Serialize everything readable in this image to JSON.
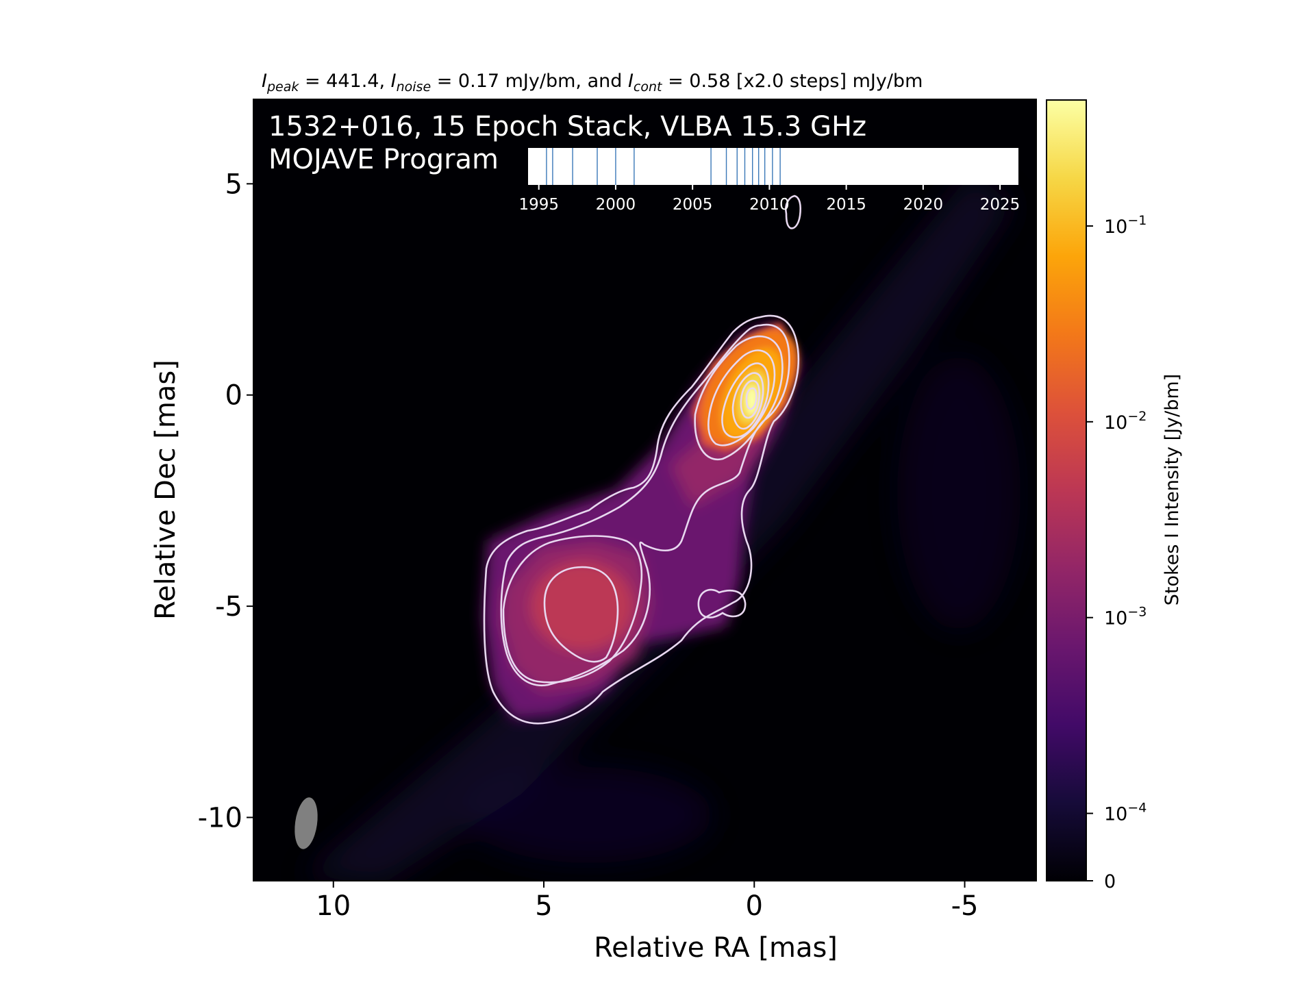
{
  "chart_data": {
    "type": "heatmap",
    "header": {
      "ipeak_sym": "I",
      "ipeak_sub": "peak",
      "ipeak_rest": " = 441.4, ",
      "inoise_sym": "I",
      "inoise_sub": "noise",
      "inoise_rest": " = 0.17 mJy/bm, and ",
      "icont_sym": "I",
      "icont_sub": "cont",
      "icont_rest": " = 0.58 [x2.0 steps] mJy/bm"
    },
    "title_line1": "1532+016, 15 Epoch Stack, VLBA 15.3 GHz",
    "title_line2": "MOJAVE Program",
    "xlabel": "Relative RA [mas]",
    "ylabel": "Relative Dec [mas]",
    "xlim": [
      11.9,
      -6.7
    ],
    "ylim": [
      -11.5,
      7
    ],
    "x_ticks": [
      10,
      5,
      0,
      -5
    ],
    "x_tick_labels": [
      "10",
      "5",
      "0",
      "-5"
    ],
    "y_ticks": [
      5,
      0,
      -5,
      -10
    ],
    "y_tick_labels": [
      "5",
      "0",
      "-5",
      "-10"
    ],
    "colorbar": {
      "label": "Stokes I Intensity [Jy/bm]",
      "scale": "log",
      "colormap": "inferno",
      "ticks": [
        0.1,
        0.01,
        0.001,
        0.0001,
        0
      ],
      "tick_labels": [
        {
          "base": "10",
          "exp": "−1"
        },
        {
          "base": "10",
          "exp": "−2"
        },
        {
          "base": "10",
          "exp": "−3"
        },
        {
          "base": "10",
          "exp": "−4"
        },
        {
          "base": "0",
          "exp": ""
        }
      ]
    },
    "epochs_inset": {
      "xlim": [
        1994.3,
        2026.2
      ],
      "ticks": [
        1995,
        2000,
        2005,
        2010,
        2015,
        2020,
        2025
      ],
      "tick_labels": [
        "1995",
        "2000",
        "2005",
        "2010",
        "2015",
        "2020",
        "2025"
      ],
      "epoch_years": [
        1995.5,
        1995.9,
        1997.2,
        1998.8,
        2000.0,
        2001.2,
        2006.2,
        2007.2,
        2007.9,
        2008.4,
        2008.9,
        2009.3,
        2009.7,
        2010.2,
        2010.7
      ]
    },
    "contour_levels_mJy": [
      0.58,
      1.16,
      2.32,
      4.64,
      9.28,
      18.56,
      37.12,
      74.24,
      148.48,
      296.96
    ],
    "beam_color": "#808080",
    "contour_color": "#e8d8f0"
  }
}
